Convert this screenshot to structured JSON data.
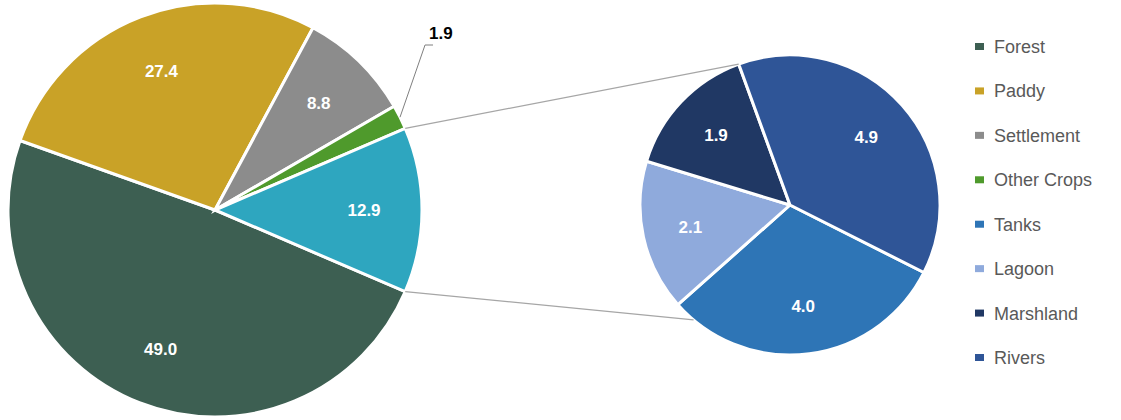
{
  "chart_data": [
    {
      "type": "pie",
      "categories": [
        "Forest",
        "Paddy",
        "Settlement",
        "Other Crops",
        null
      ],
      "values": [
        49.0,
        27.4,
        8.8,
        1.9,
        12.9
      ],
      "value_labels": [
        "49.0",
        "27.4",
        "8.8",
        "1.9",
        "12.9"
      ],
      "colors": [
        "#3d5f52",
        "#c9a227",
        "#8c8c8c",
        "#4f9a2c",
        "#2ea6bf"
      ],
      "data_labels": true,
      "legend": "right"
    },
    {
      "type": "pie",
      "categories": [
        "Tanks",
        "Lagoon",
        "Marshland",
        "Rivers"
      ],
      "values": [
        4.0,
        2.1,
        1.9,
        4.9
      ],
      "value_labels": [
        "4.0",
        "2.1",
        "1.9",
        "4.9"
      ],
      "colors": [
        "#2e75b6",
        "#8faadc",
        "#203864",
        "#2f5597"
      ],
      "data_labels": true,
      "legend": "right"
    }
  ]
}
